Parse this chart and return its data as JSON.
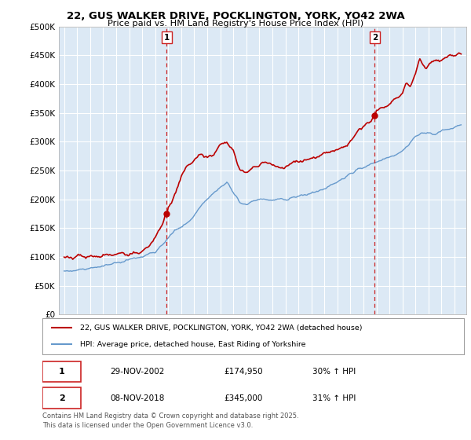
{
  "title1": "22, GUS WALKER DRIVE, POCKLINGTON, YORK, YO42 2WA",
  "title2": "Price paid vs. HM Land Registry's House Price Index (HPI)",
  "legend_label1": "22, GUS WALKER DRIVE, POCKLINGTON, YORK, YO42 2WA (detached house)",
  "legend_label2": "HPI: Average price, detached house, East Riding of Yorkshire",
  "marker1_date": "29-NOV-2002",
  "marker1_price": "£174,950",
  "marker1_hpi": "30% ↑ HPI",
  "marker2_date": "08-NOV-2018",
  "marker2_price": "£345,000",
  "marker2_hpi": "31% ↑ HPI",
  "footer": "Contains HM Land Registry data © Crown copyright and database right 2025.\nThis data is licensed under the Open Government Licence v3.0.",
  "line1_color": "#bb0000",
  "line2_color": "#6699cc",
  "vline_color": "#cc2222",
  "plot_bg_color": "#dce9f5",
  "fig_bg_color": "#ffffff",
  "grid_color": "#ffffff",
  "ylim": [
    0,
    500000
  ],
  "yticks": [
    0,
    50000,
    100000,
    150000,
    200000,
    250000,
    300000,
    350000,
    400000,
    450000,
    500000
  ],
  "sale1_year": 2002.88,
  "sale1_price": 174950,
  "sale2_year": 2018.87,
  "sale2_price": 345000
}
